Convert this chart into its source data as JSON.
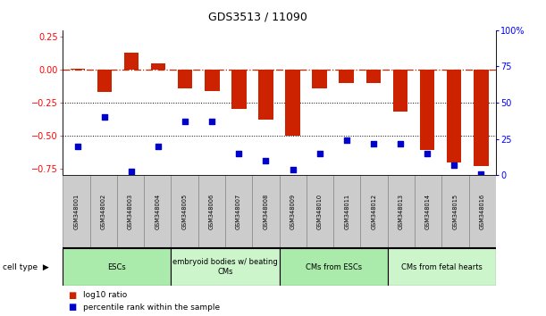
{
  "title": "GDS3513 / 11090",
  "samples": [
    "GSM348001",
    "GSM348002",
    "GSM348003",
    "GSM348004",
    "GSM348005",
    "GSM348006",
    "GSM348007",
    "GSM348008",
    "GSM348009",
    "GSM348010",
    "GSM348011",
    "GSM348012",
    "GSM348013",
    "GSM348014",
    "GSM348015",
    "GSM348016"
  ],
  "log10_ratio": [
    0.01,
    -0.17,
    0.13,
    0.05,
    -0.14,
    -0.16,
    -0.3,
    -0.38,
    -0.5,
    -0.14,
    -0.1,
    -0.1,
    -0.32,
    -0.61,
    -0.7,
    -0.73
  ],
  "percentile_rank": [
    20,
    40,
    3,
    20,
    37,
    37,
    15,
    10,
    4,
    15,
    24,
    22,
    22,
    15,
    7,
    1
  ],
  "cell_type_groups": [
    {
      "label": "ESCs",
      "start": 0,
      "end": 3,
      "color": "#aaeaaa"
    },
    {
      "label": "embryoid bodies w/ beating\nCMs",
      "start": 4,
      "end": 7,
      "color": "#ccf5cc"
    },
    {
      "label": "CMs from ESCs",
      "start": 8,
      "end": 11,
      "color": "#aaeaaa"
    },
    {
      "label": "CMs from fetal hearts",
      "start": 12,
      "end": 15,
      "color": "#ccf5cc"
    }
  ],
  "bar_color": "#CC2200",
  "dot_color": "#0000CC",
  "ylim_left": [
    -0.8,
    0.3
  ],
  "ylim_right": [
    0,
    100
  ],
  "yticks_left": [
    0.25,
    0.0,
    -0.25,
    -0.5,
    -0.75
  ],
  "yticks_right": [
    0,
    25,
    50,
    75,
    100
  ],
  "dotted_lines": [
    -0.25,
    -0.5
  ],
  "legend_red": "log10 ratio",
  "legend_blue": "percentile rank within the sample",
  "cell_type_label": "cell type",
  "sample_box_color": "#cccccc",
  "sample_box_edge": "#888888"
}
